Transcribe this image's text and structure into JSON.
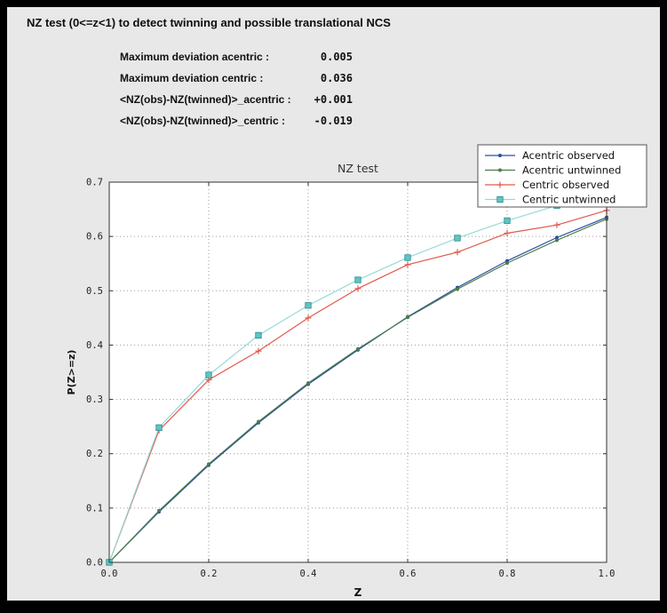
{
  "header": {
    "title": "NZ test (0<=z<1) to detect twinning and possible translational NCS"
  },
  "stats": [
    {
      "label": "Maximum deviation acentric :",
      "value": "0.005"
    },
    {
      "label": "Maximum deviation centric :",
      "value": "0.036"
    },
    {
      "label": "<NZ(obs)-NZ(twinned)>_acentric :",
      "value": "+0.001"
    },
    {
      "label": "<NZ(obs)-NZ(twinned)>_centric :",
      "value": "-0.019"
    }
  ],
  "colors": {
    "panel_background": "#e8e8e8",
    "plot_background": "#ffffff",
    "grid": "#9a9a9a",
    "frame": "#333333"
  },
  "chart_data": {
    "type": "line",
    "title": "NZ test",
    "xlabel": "Z",
    "ylabel": "P(Z>=z)",
    "xlim": [
      0.0,
      1.0
    ],
    "ylim": [
      0.0,
      0.7
    ],
    "xticks": [
      0.0,
      0.2,
      0.4,
      0.6,
      0.8,
      1.0
    ],
    "yticks": [
      0.0,
      0.1,
      0.2,
      0.3,
      0.4,
      0.5,
      0.6,
      0.7
    ],
    "grid": true,
    "legend_position": "top-right",
    "x": [
      0.0,
      0.1,
      0.2,
      0.3,
      0.4,
      0.5,
      0.6,
      0.7,
      0.8,
      0.9,
      1.0
    ],
    "series": [
      {
        "name": "Acentric observed",
        "color": "#2a4da0",
        "marker": "dot",
        "values": [
          0.0,
          0.093,
          0.179,
          0.257,
          0.328,
          0.391,
          0.452,
          0.506,
          0.555,
          0.598,
          0.635
        ]
      },
      {
        "name": "Acentric untwinned",
        "color": "#4b7d4b",
        "marker": "dot",
        "values": [
          0.0,
          0.095,
          0.181,
          0.259,
          0.33,
          0.393,
          0.451,
          0.503,
          0.551,
          0.593,
          0.632
        ]
      },
      {
        "name": "Centric observed",
        "color": "#e05a4e",
        "marker": "plus",
        "values": [
          0.0,
          0.243,
          0.336,
          0.389,
          0.45,
          0.504,
          0.548,
          0.571,
          0.606,
          0.621,
          0.648
        ]
      },
      {
        "name": "Centric untwinned",
        "color": "#98d9d9",
        "marker": "square",
        "marker_color": "#5ec4c4",
        "marker_edge": "#2e8b8b",
        "values": [
          0.0,
          0.248,
          0.345,
          0.418,
          0.473,
          0.52,
          0.561,
          0.597,
          0.629,
          0.657,
          0.683
        ]
      }
    ]
  }
}
